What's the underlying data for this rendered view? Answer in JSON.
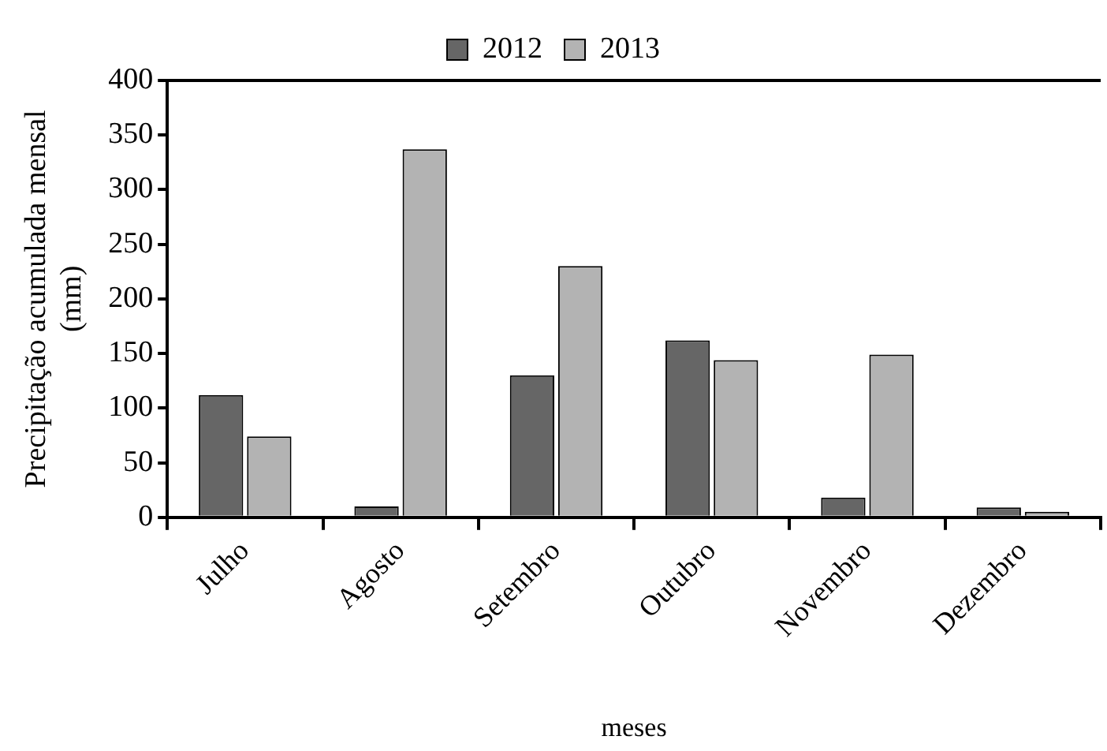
{
  "chart_data": {
    "type": "bar",
    "xlabel": "meses",
    "ylabel": "Precipitação acumulada mensal (mm)",
    "categories": [
      "Julho",
      "Agosto",
      "Setembro",
      "Outubro",
      "Novembro",
      "Dezembro"
    ],
    "series": [
      {
        "name": "2012",
        "color": "#666666",
        "values": [
          112,
          10,
          130,
          162,
          18,
          9
        ]
      },
      {
        "name": "2013",
        "color": "#b3b3b3",
        "values": [
          74,
          337,
          230,
          144,
          149,
          5
        ]
      }
    ],
    "ylim": [
      0,
      400
    ],
    "yticks": [
      0,
      50,
      100,
      150,
      200,
      250,
      300,
      350,
      400
    ],
    "grid": false,
    "legend": "top"
  }
}
